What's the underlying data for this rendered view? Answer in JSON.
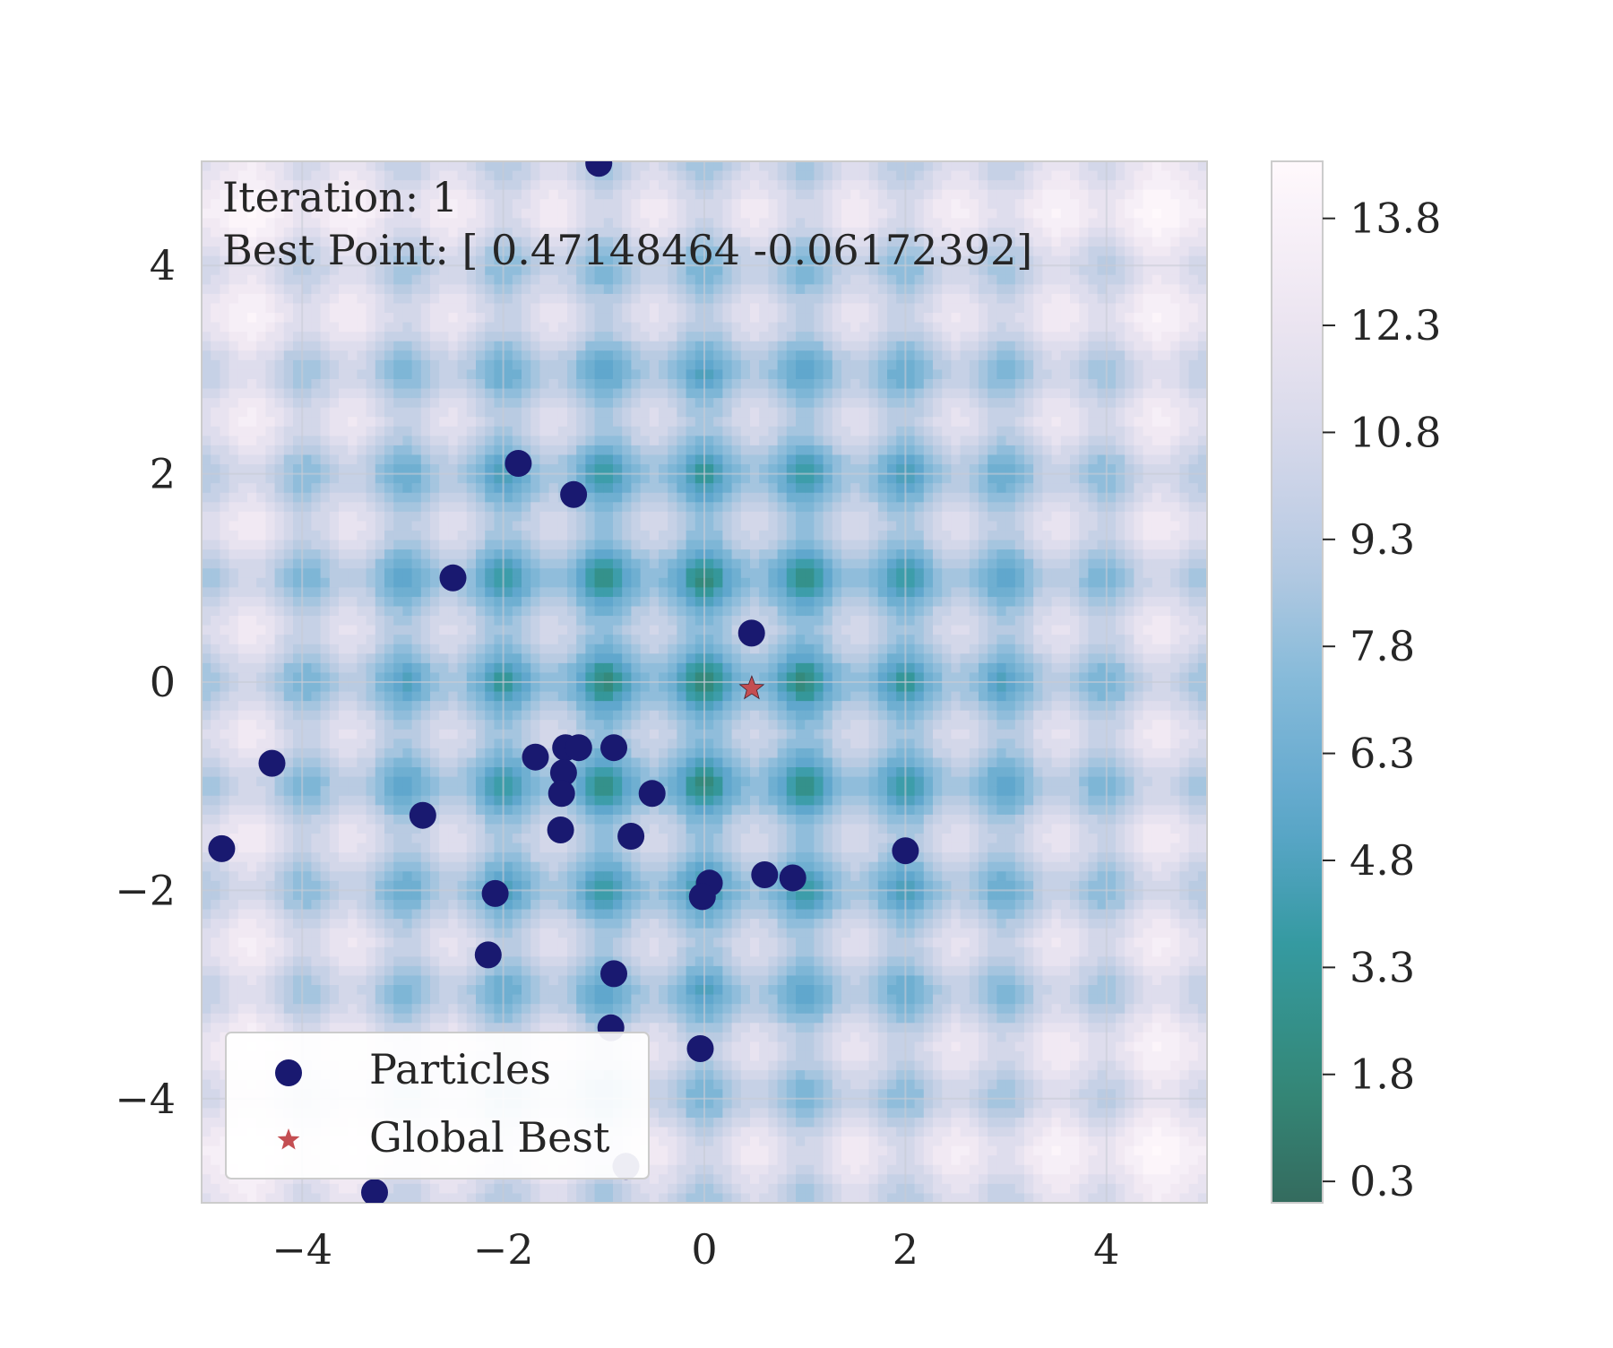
{
  "chart_data": {
    "type": "scatter",
    "xlim": [
      -5,
      5
    ],
    "ylim": [
      -5,
      5
    ],
    "x_ticks": [
      -4,
      -2,
      0,
      2,
      4
    ],
    "y_ticks": [
      -4,
      -2,
      0,
      2,
      4
    ],
    "x_tick_labels": [
      "−4",
      "−2",
      "0",
      "2",
      "4"
    ],
    "y_tick_labels": [
      "−4",
      "−2",
      "0",
      "2",
      "4"
    ],
    "grid": true,
    "background": "filled contour of Rastrigin function, colormap PuBuGn_r",
    "colorbar": {
      "min": 0.0,
      "max": 14.6,
      "ticks": [
        0.3,
        1.8,
        3.3,
        4.8,
        6.3,
        7.8,
        9.3,
        10.8,
        12.3,
        13.8
      ],
      "tick_labels": [
        "0.3",
        "1.8",
        "3.3",
        "4.8",
        "6.3",
        "7.8",
        "9.3",
        "10.8",
        "12.3",
        "13.8"
      ]
    },
    "annotation": {
      "line1": "Iteration: 1",
      "line2": "Best Point: [ 0.47148464 -0.06172392]"
    },
    "legend": {
      "placement": "lower-left",
      "entries": [
        "Particles",
        "Global Best"
      ]
    },
    "series": [
      {
        "name": "Particles",
        "color": "#191970",
        "points": [
          [
            -1.05,
            4.98
          ],
          [
            -1.85,
            2.1
          ],
          [
            -1.3,
            1.8
          ],
          [
            -2.5,
            1.0
          ],
          [
            0.47,
            0.47
          ],
          [
            -4.3,
            -0.78
          ],
          [
            -1.68,
            -0.72
          ],
          [
            -1.38,
            -0.63
          ],
          [
            -1.25,
            -0.63
          ],
          [
            -0.9,
            -0.63
          ],
          [
            -1.4,
            -0.87
          ],
          [
            -1.42,
            -1.07
          ],
          [
            -0.52,
            -1.07
          ],
          [
            -2.8,
            -1.28
          ],
          [
            -1.43,
            -1.42
          ],
          [
            -0.73,
            -1.48
          ],
          [
            -4.8,
            -1.6
          ],
          [
            2.0,
            -1.62
          ],
          [
            0.6,
            -1.85
          ],
          [
            0.88,
            -1.88
          ],
          [
            0.05,
            -1.93
          ],
          [
            -2.08,
            -2.03
          ],
          [
            -0.02,
            -2.06
          ],
          [
            -2.15,
            -2.62
          ],
          [
            -0.9,
            -2.8
          ],
          [
            -0.93,
            -3.32
          ],
          [
            -0.04,
            -3.52
          ],
          [
            -0.78,
            -4.65
          ],
          [
            -3.28,
            -4.9
          ]
        ]
      },
      {
        "name": "Global Best",
        "color": "#c44e52",
        "points": [
          [
            0.47148464,
            -0.06172392
          ]
        ]
      }
    ]
  }
}
